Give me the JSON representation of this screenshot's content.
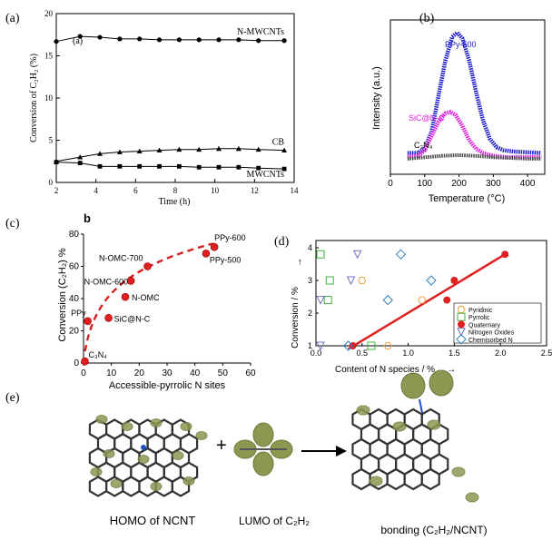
{
  "panels": {
    "a": {
      "tag": "(a)",
      "inner_tag": "(a)"
    },
    "b": {
      "tag": "(b)"
    },
    "c": {
      "tag": "(c)",
      "inner_tag": "b"
    },
    "d": {
      "tag": "(d)"
    },
    "e": {
      "tag": "(e)",
      "homo_label": "HOMO of NCNT",
      "lumo_label": "LUMO of C₂H₂",
      "bonding_label": "bonding (C₂H₂/NCNT)",
      "plus": "+"
    }
  },
  "chart_data": [
    {
      "id": "a",
      "type": "line",
      "xlabel": "Time (h)",
      "ylabel": "Conversion of C₂H₂ (%)",
      "xlim": [
        2,
        14
      ],
      "ylim": [
        0,
        20
      ],
      "xticks": [
        2,
        4,
        6,
        8,
        10,
        12,
        14
      ],
      "yticks": [
        0,
        5,
        10,
        15,
        20
      ],
      "series": [
        {
          "name": "N-MWCNTs",
          "marker": "circle",
          "x": [
            2,
            3.2,
            4.2,
            5.2,
            6.2,
            7.2,
            8.2,
            9.2,
            10.2,
            11.2,
            12.2,
            13.5
          ],
          "y": [
            16.7,
            17.3,
            17.2,
            17.0,
            17.0,
            16.9,
            16.9,
            16.9,
            16.9,
            16.9,
            16.8,
            16.8
          ]
        },
        {
          "name": "CB",
          "marker": "triangle",
          "x": [
            2,
            3.2,
            4.2,
            5.2,
            6.2,
            7.2,
            8.2,
            9.2,
            10.2,
            11.2,
            12.2,
            13.5
          ],
          "y": [
            2.5,
            3.0,
            3.4,
            3.6,
            3.7,
            3.8,
            3.9,
            3.9,
            4.0,
            4.0,
            3.9,
            3.8
          ]
        },
        {
          "name": "MWCNTs",
          "marker": "square",
          "x": [
            2,
            3.2,
            4.2,
            5.2,
            6.2,
            7.2,
            8.2,
            9.2,
            10.2,
            11.2,
            12.2,
            13.5
          ],
          "y": [
            2.4,
            2.3,
            1.9,
            1.9,
            1.9,
            1.9,
            1.9,
            1.8,
            1.8,
            1.8,
            1.7,
            1.6
          ]
        }
      ]
    },
    {
      "id": "b",
      "type": "line",
      "xlabel": "Temperature (°C)",
      "ylabel": "Intensity (a.u.)",
      "xlim": [
        0,
        450
      ],
      "xticks": [
        0,
        100,
        200,
        300,
        400
      ],
      "series": [
        {
          "name": "PPy-500",
          "color": "#1a1acc",
          "x": [
            50,
            80,
            100,
            120,
            140,
            160,
            180,
            195,
            210,
            230,
            250,
            270,
            290,
            310,
            330,
            360,
            400,
            440
          ],
          "y": [
            0.15,
            0.15,
            0.18,
            0.3,
            0.55,
            0.8,
            0.97,
            1.0,
            0.96,
            0.8,
            0.58,
            0.38,
            0.25,
            0.19,
            0.17,
            0.16,
            0.155,
            0.15
          ]
        },
        {
          "name": "SiC@N-C",
          "color": "#e020e0",
          "x": [
            50,
            80,
            100,
            120,
            140,
            160,
            175,
            190,
            210,
            230,
            250,
            270,
            300,
            340,
            400,
            440
          ],
          "y": [
            0.12,
            0.13,
            0.17,
            0.27,
            0.37,
            0.43,
            0.44,
            0.42,
            0.34,
            0.24,
            0.18,
            0.15,
            0.13,
            0.12,
            0.12,
            0.12
          ]
        },
        {
          "name": "C₃N₄",
          "color": "#444444",
          "x": [
            50,
            100,
            150,
            200,
            250,
            300,
            350,
            400,
            440
          ],
          "y": [
            0.11,
            0.12,
            0.13,
            0.135,
            0.13,
            0.12,
            0.115,
            0.11,
            0.11
          ]
        }
      ]
    },
    {
      "id": "c",
      "type": "scatter",
      "xlabel": "Accessible-pyrrolic N sites",
      "ylabel": "Conversion (C₂H₂) %",
      "xlim": [
        0,
        60
      ],
      "ylim": [
        0,
        80
      ],
      "xticks": [
        0,
        10,
        20,
        30,
        40,
        50,
        60
      ],
      "yticks": [
        0,
        20,
        40,
        60,
        80
      ],
      "points": [
        {
          "label": "C₃N₄",
          "x": 0.5,
          "y": 1
        },
        {
          "label": "PPy",
          "x": 1.5,
          "y": 26
        },
        {
          "label": "SiC@N-C",
          "x": 9,
          "y": 28
        },
        {
          "label": "N-OMC",
          "x": 15,
          "y": 41
        },
        {
          "label": "N-OMC-600",
          "x": 17,
          "y": 51
        },
        {
          "label": "N-OMC-700",
          "x": 23,
          "y": 60
        },
        {
          "label": "PPy-500",
          "x": 44,
          "y": 68
        },
        {
          "label": "PPy-600",
          "x": 47,
          "y": 72
        }
      ],
      "fit_curve": {
        "style": "dashed",
        "color": "#d62020"
      }
    },
    {
      "id": "d",
      "type": "scatter",
      "xlabel": "Content of N species / %",
      "ylabel": "Conversion / %",
      "xlim": [
        0,
        2.5
      ],
      "ylim": [
        1,
        4
      ],
      "xticks": [
        0.0,
        0.5,
        1.0,
        1.5,
        2.0,
        2.5
      ],
      "yticks": [
        1,
        2,
        3,
        4
      ],
      "legend_position": "bottom-right",
      "series": [
        {
          "name": "Pyridinic",
          "marker": "hexagon",
          "color": "#f0a040",
          "x": [
            0.5,
            0.78,
            1.15
          ],
          "y": [
            3.0,
            1.0,
            2.4
          ]
        },
        {
          "name": "Pyrrolic",
          "marker": "square",
          "color": "#40b040",
          "x": [
            0.05,
            0.15,
            0.13,
            0.6
          ],
          "y": [
            3.8,
            3.0,
            2.4,
            1.0
          ]
        },
        {
          "name": "Quaternary",
          "marker": "filled-circle",
          "color": "#e02020",
          "x": [
            0.4,
            1.42,
            1.5,
            2.05
          ],
          "y": [
            1.0,
            2.4,
            3.0,
            3.8
          ]
        },
        {
          "name": "Nitrogen Oxides",
          "marker": "triangle-down",
          "color": "#7070c0",
          "x": [
            0.05,
            0.05,
            0.38,
            0.45
          ],
          "y": [
            2.4,
            1.0,
            3.0,
            3.8
          ]
        },
        {
          "name": "Chemisorbed N",
          "marker": "diamond",
          "color": "#3080c0",
          "x": [
            0.35,
            0.78,
            0.92,
            1.25
          ],
          "y": [
            1.0,
            2.4,
            3.8,
            3.0
          ]
        }
      ],
      "fit_line": {
        "x": [
          0.35,
          2.05
        ],
        "y": [
          0.9,
          3.8
        ],
        "color": "#e02020"
      }
    }
  ]
}
